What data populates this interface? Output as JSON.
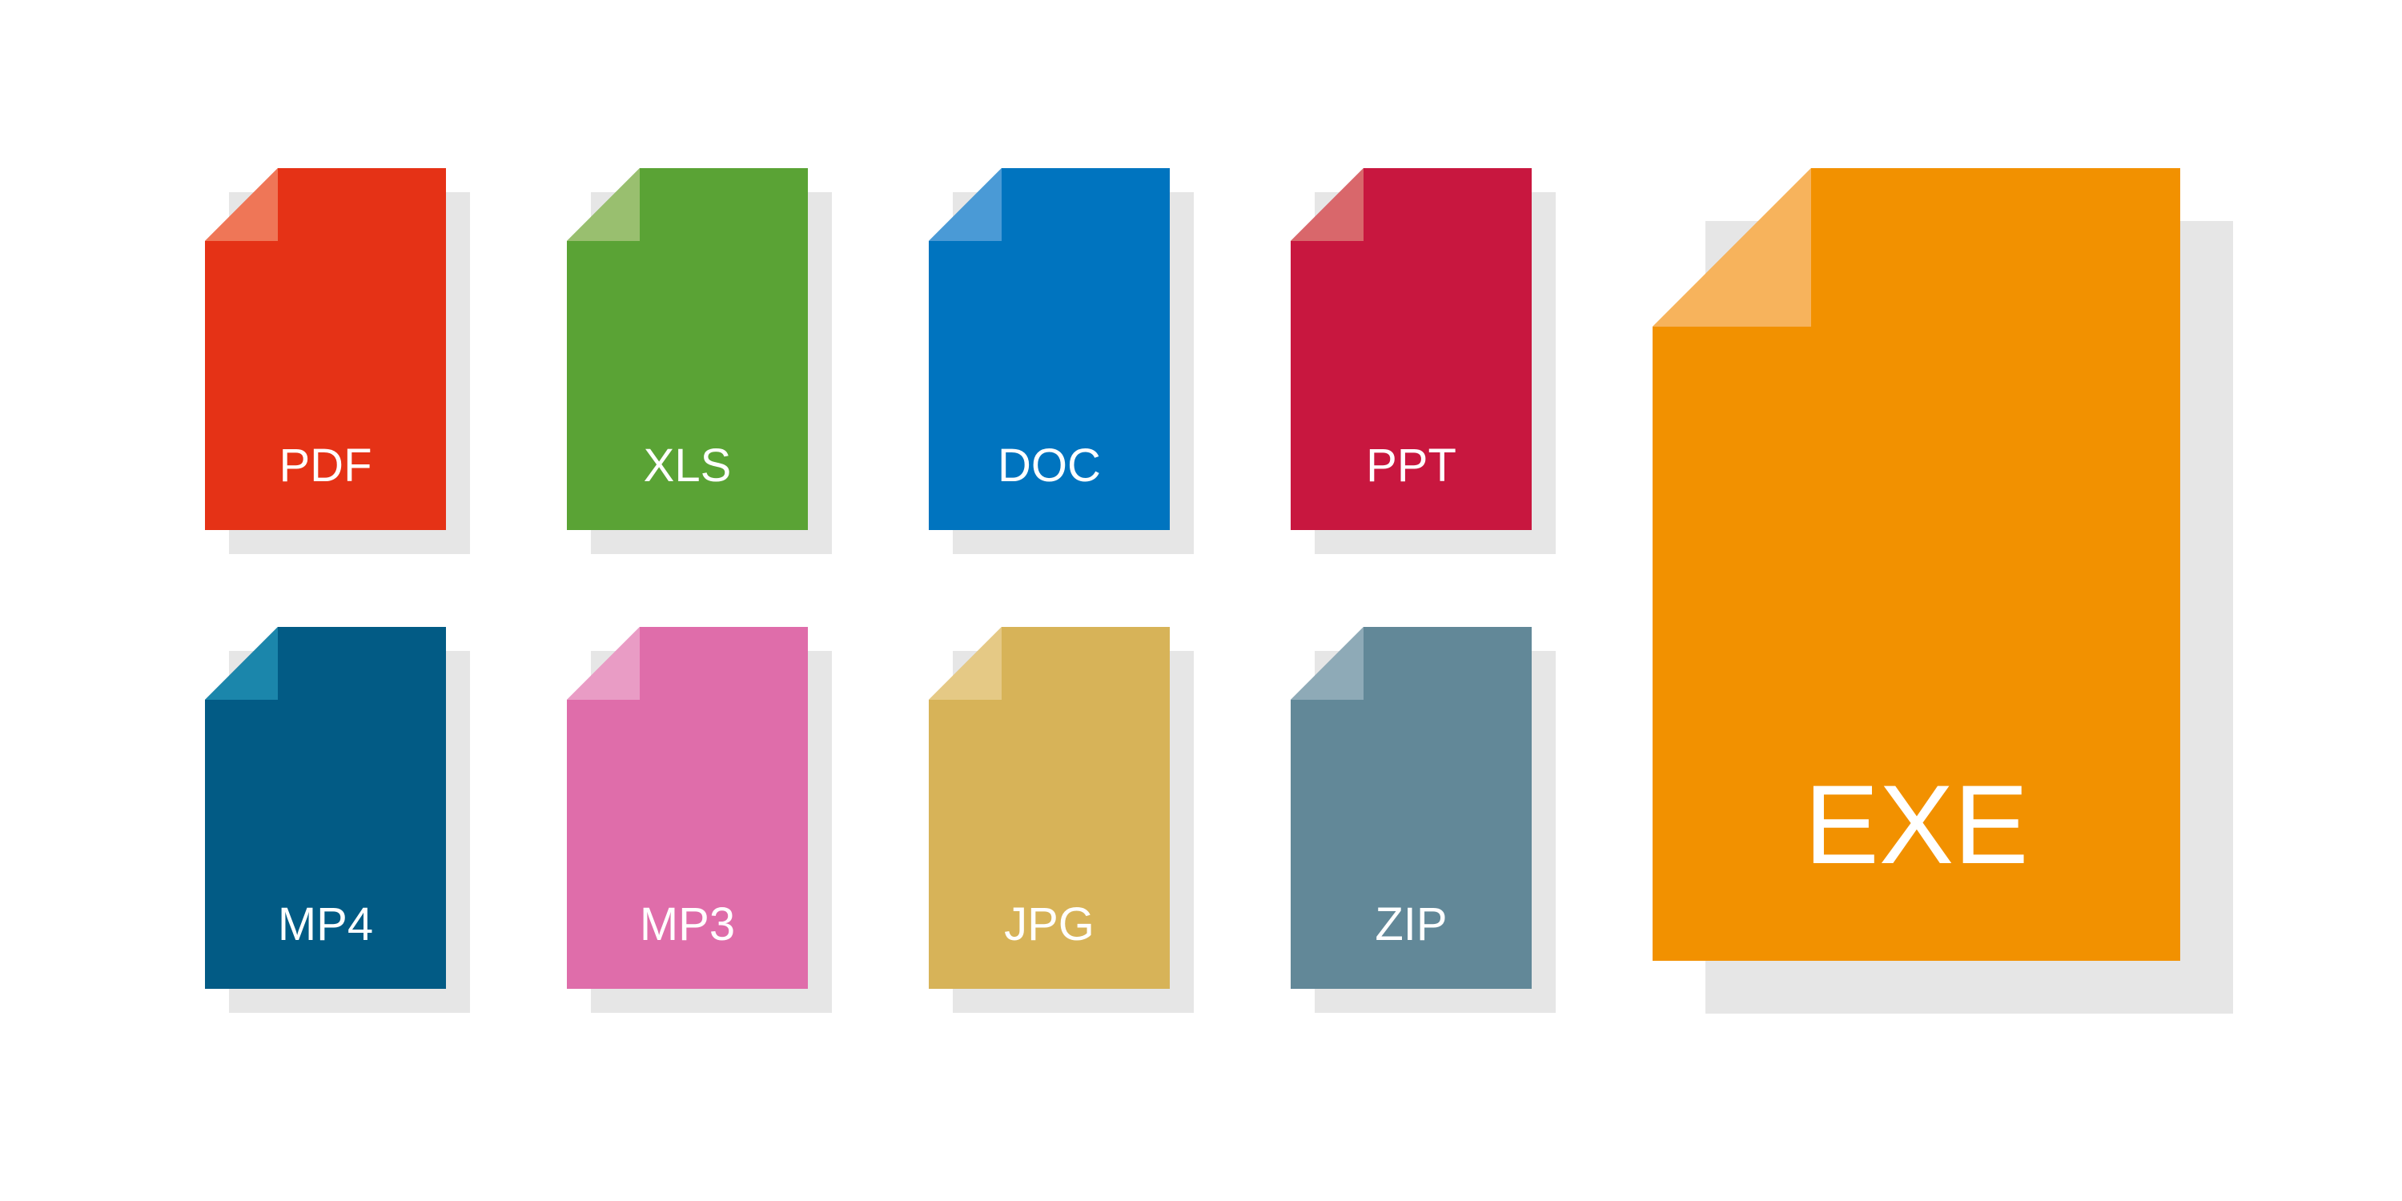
{
  "icons": [
    {
      "id": "pdf",
      "label": "PDF",
      "color": "#e53216",
      "fold_color": "#ef7657",
      "icon": "pdf-file-icon"
    },
    {
      "id": "xls",
      "label": "XLS",
      "color": "#5aa335",
      "fold_color": "#99bf6f",
      "icon": "xls-file-icon"
    },
    {
      "id": "doc",
      "label": "DOC",
      "color": "#0074bf",
      "fold_color": "#4a9ad6",
      "icon": "doc-file-icon"
    },
    {
      "id": "ppt",
      "label": "PPT",
      "color": "#c8173f",
      "fold_color": "#d9676b",
      "icon": "ppt-file-icon"
    },
    {
      "id": "mp4",
      "label": "MP4",
      "color": "#025b85",
      "fold_color": "#1b86ab",
      "icon": "mp4-file-icon"
    },
    {
      "id": "mp3",
      "label": "MP3",
      "color": "#df6daa",
      "fold_color": "#e99cc5",
      "icon": "mp3-file-icon"
    },
    {
      "id": "jpg",
      "label": "JPG",
      "color": "#d7b358",
      "fold_color": "#e5c985",
      "icon": "jpg-file-icon"
    },
    {
      "id": "zip",
      "label": "ZIP",
      "color": "#628898",
      "fold_color": "#8eaab7",
      "icon": "zip-file-icon"
    },
    {
      "id": "exe",
      "label": "EXE",
      "color": "#f29100",
      "fold_color": "#f7b35c",
      "icon": "exe-file-icon"
    }
  ],
  "shadow_color": "#e6e6e6",
  "background_color": "#ffffff"
}
